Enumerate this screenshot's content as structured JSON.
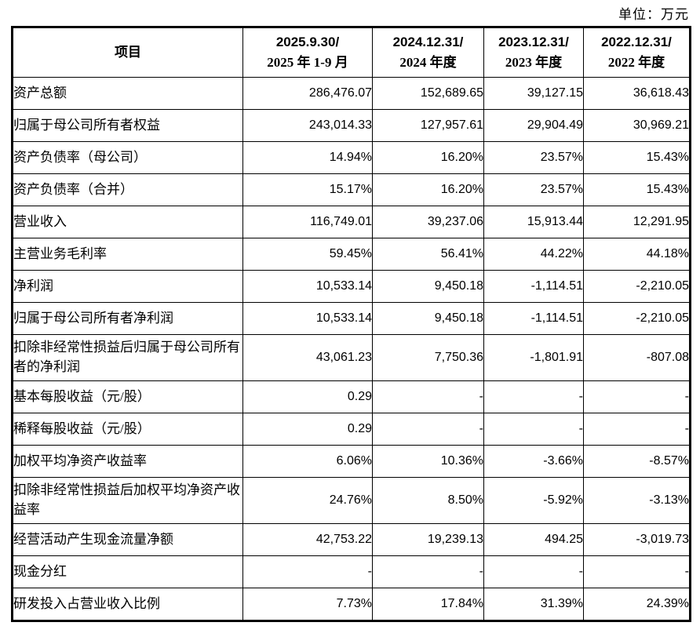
{
  "unit_label": "单位：万元",
  "colors": {
    "border": "#000000",
    "text": "#000000",
    "background": "#ffffff"
  },
  "table": {
    "header": {
      "item": "项目",
      "periods": [
        {
          "line1": "2025.9.30/",
          "line2": "2025 年 1-9 月"
        },
        {
          "line1": "2024.12.31/",
          "line2": "2024 年度"
        },
        {
          "line1": "2023.12.31/",
          "line2": "2023 年度"
        },
        {
          "line1": "2022.12.31/",
          "line2": "2022 年度"
        }
      ]
    },
    "rows": [
      {
        "label": "资产总额",
        "two_line": false,
        "values": [
          "286,476.07",
          "152,689.65",
          "39,127.15",
          "36,618.43"
        ]
      },
      {
        "label": "归属于母公司所有者权益",
        "two_line": false,
        "values": [
          "243,014.33",
          "127,957.61",
          "29,904.49",
          "30,969.21"
        ]
      },
      {
        "label": "资产负债率（母公司）",
        "two_line": false,
        "values": [
          "14.94%",
          "16.20%",
          "23.57%",
          "15.43%"
        ]
      },
      {
        "label": "资产负债率（合并）",
        "two_line": false,
        "values": [
          "15.17%",
          "16.20%",
          "23.57%",
          "15.43%"
        ]
      },
      {
        "label": "营业收入",
        "two_line": false,
        "values": [
          "116,749.01",
          "39,237.06",
          "15,913.44",
          "12,291.95"
        ]
      },
      {
        "label": "主营业务毛利率",
        "two_line": false,
        "values": [
          "59.45%",
          "56.41%",
          "44.22%",
          "44.18%"
        ]
      },
      {
        "label": "净利润",
        "two_line": false,
        "values": [
          "10,533.14",
          "9,450.18",
          "-1,114.51",
          "-2,210.05"
        ]
      },
      {
        "label": "归属于母公司所有者净利润",
        "two_line": false,
        "values": [
          "10,533.14",
          "9,450.18",
          "-1,114.51",
          "-2,210.05"
        ]
      },
      {
        "label": "扣除非经常性损益后归属于母公司所有者的净利润",
        "two_line": true,
        "values": [
          "43,061.23",
          "7,750.36",
          "-1,801.91",
          "-807.08"
        ]
      },
      {
        "label": "基本每股收益（元/股）",
        "two_line": false,
        "values": [
          "0.29",
          "-",
          "-",
          "-"
        ]
      },
      {
        "label": "稀释每股收益（元/股）",
        "two_line": false,
        "values": [
          "0.29",
          "-",
          "-",
          "-"
        ]
      },
      {
        "label": "加权平均净资产收益率",
        "two_line": false,
        "values": [
          "6.06%",
          "10.36%",
          "-3.66%",
          "-8.57%"
        ]
      },
      {
        "label": "扣除非经常性损益后加权平均净资产收益率",
        "two_line": true,
        "values": [
          "24.76%",
          "8.50%",
          "-5.92%",
          "-3.13%"
        ]
      },
      {
        "label": "经营活动产生现金流量净额",
        "two_line": false,
        "values": [
          "42,753.22",
          "19,239.13",
          "494.25",
          "-3,019.73"
        ]
      },
      {
        "label": "现金分红",
        "two_line": false,
        "values": [
          "-",
          "-",
          "-",
          "-"
        ]
      },
      {
        "label": "研发投入占营业收入比例",
        "two_line": false,
        "values": [
          "7.73%",
          "17.84%",
          "31.39%",
          "24.39%"
        ]
      }
    ]
  }
}
